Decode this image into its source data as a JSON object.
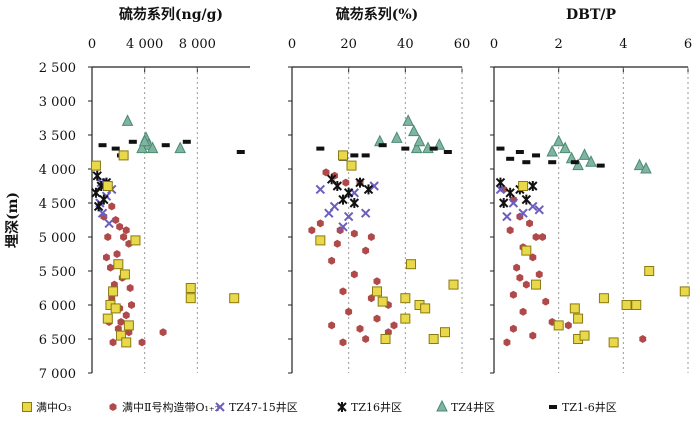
{
  "chart_data": {
    "type": "scatter",
    "ylabel": "埋深(m)",
    "ylim": [
      2500,
      7000
    ],
    "y_ticks": [
      "2 500",
      "3 000",
      "3 500",
      "4 000",
      "4 500",
      "5 000",
      "5 500",
      "6 000",
      "6 500",
      "7 000"
    ],
    "y_tick_values": [
      2500,
      3000,
      3500,
      4000,
      4500,
      5000,
      5500,
      6000,
      6500,
      7000
    ],
    "y_inverted": true,
    "grid": "vertical dashed",
    "legend_position": "bottom",
    "legend": [
      {
        "key": "ms",
        "label": "满中O₃",
        "color": "#e8d84a",
        "marker": "square"
      },
      {
        "key": "sz",
        "label": "满中Ⅱ号构造带O₁₊₂",
        "color": "#b04a4a",
        "marker": "hexagon"
      },
      {
        "key": "tz47",
        "label": "TZ47-15井区",
        "color": "#6a5fc0",
        "marker": "x"
      },
      {
        "key": "tz16",
        "label": "TZ16井区",
        "color": "#111111",
        "marker": "star"
      },
      {
        "key": "tz4",
        "label": "TZ4井区",
        "color": "#7fb5a0",
        "marker": "triangle"
      },
      {
        "key": "tz16b",
        "label": "TZ1-6井区",
        "color": "#111111",
        "marker": "dot"
      }
    ],
    "panels": [
      {
        "title": "硫芴系列(ng/g)",
        "xlim": [
          0,
          12000
        ],
        "x_ticks": [
          "0",
          "4 000",
          "8 000"
        ],
        "x_tick_values": [
          0,
          4000,
          8000
        ],
        "series": {
          "ms": [
            [
              300,
              3950
            ],
            [
              2400,
              3800
            ],
            [
              1200,
              4250
            ],
            [
              3300,
              5050
            ],
            [
              2000,
              5400
            ],
            [
              2500,
              5550
            ],
            [
              1600,
              5800
            ],
            [
              1400,
              6000
            ],
            [
              1200,
              6200
            ],
            [
              2800,
              6300
            ],
            [
              2200,
              6450
            ],
            [
              2600,
              6550
            ],
            [
              7500,
              5750
            ],
            [
              7500,
              5900
            ],
            [
              10800,
              5900
            ],
            [
              1800,
              6050
            ]
          ],
          "sz": [
            [
              1500,
              4550
            ],
            [
              1800,
              4750
            ],
            [
              2100,
              4850
            ],
            [
              2600,
              4900
            ],
            [
              1200,
              5000
            ],
            [
              2800,
              5100
            ],
            [
              1900,
              5250
            ],
            [
              1400,
              5450
            ],
            [
              2300,
              5600
            ],
            [
              1700,
              5700
            ],
            [
              2900,
              5750
            ],
            [
              1500,
              5900
            ],
            [
              2100,
              6050
            ],
            [
              2600,
              6150
            ],
            [
              1300,
              6250
            ],
            [
              2000,
              6350
            ],
            [
              2800,
              6400
            ],
            [
              1600,
              6550
            ],
            [
              3800,
              6550
            ],
            [
              5400,
              6400
            ],
            [
              2400,
              5000
            ],
            [
              1100,
              5300
            ],
            [
              3000,
              6000
            ],
            [
              900,
              4700
            ],
            [
              2200,
              6250
            ]
          ],
          "tz47": [
            [
              700,
              4200
            ],
            [
              1100,
              4400
            ],
            [
              800,
              4650
            ],
            [
              1300,
              4800
            ],
            [
              600,
              4500
            ],
            [
              1500,
              4300
            ]
          ],
          "tz16": [
            [
              400,
              4100
            ],
            [
              700,
              4250
            ],
            [
              300,
              4350
            ],
            [
              900,
              4450
            ],
            [
              500,
              4550
            ],
            [
              1100,
              4200
            ]
          ],
          "tz4": [
            [
              2700,
              3300
            ],
            [
              4100,
              3550
            ],
            [
              4300,
              3650
            ],
            [
              3800,
              3700
            ],
            [
              4600,
              3700
            ],
            [
              6700,
              3700
            ],
            [
              4000,
              3600
            ]
          ],
          "tz16b": [
            [
              800,
              3650
            ],
            [
              1800,
              3700
            ],
            [
              3100,
              3600
            ],
            [
              5600,
              3650
            ],
            [
              7200,
              3600
            ],
            [
              11300,
              3750
            ],
            [
              2200,
              3800
            ]
          ]
        }
      },
      {
        "title": "硫芴系列(%)",
        "xlim": [
          0,
          60
        ],
        "x_ticks": [
          "0",
          "20",
          "40",
          "60"
        ],
        "x_tick_values": [
          0,
          20,
          40,
          60
        ],
        "series": {
          "ms": [
            [
              21,
              3950
            ],
            [
              10,
              5050
            ],
            [
              42,
              5400
            ],
            [
              57,
              5700
            ],
            [
              30,
              5800
            ],
            [
              32,
              5950
            ],
            [
              40,
              5900
            ],
            [
              45,
              6000
            ],
            [
              47,
              6050
            ],
            [
              40,
              6200
            ],
            [
              54,
              6400
            ],
            [
              50,
              6500
            ],
            [
              33,
              6500
            ],
            [
              18,
              3800
            ]
          ],
          "sz": [
            [
              12,
              4050
            ],
            [
              15,
              4100
            ],
            [
              19,
              4200
            ],
            [
              24,
              4200
            ],
            [
              10,
              4800
            ],
            [
              17,
              4900
            ],
            [
              22,
              4950
            ],
            [
              28,
              5000
            ],
            [
              16,
              5100
            ],
            [
              26,
              5200
            ],
            [
              14,
              5350
            ],
            [
              22,
              5550
            ],
            [
              30,
              5650
            ],
            [
              18,
              5800
            ],
            [
              28,
              5900
            ],
            [
              34,
              6000
            ],
            [
              20,
              6100
            ],
            [
              30,
              6200
            ],
            [
              14,
              6300
            ],
            [
              24,
              6350
            ],
            [
              34,
              6400
            ],
            [
              18,
              6550
            ],
            [
              26,
              6500
            ],
            [
              7,
              4900
            ],
            [
              36,
              6300
            ]
          ],
          "tz47": [
            [
              10,
              4300
            ],
            [
              15,
              4550
            ],
            [
              20,
              4700
            ],
            [
              26,
              4650
            ],
            [
              18,
              4850
            ],
            [
              22,
              4350
            ],
            [
              29,
              4250
            ],
            [
              13,
              4650
            ]
          ],
          "tz16": [
            [
              16,
              4250
            ],
            [
              20,
              4350
            ],
            [
              24,
              4200
            ],
            [
              18,
              4450
            ],
            [
              14,
              4150
            ],
            [
              22,
              4500
            ],
            [
              27,
              4300
            ]
          ],
          "tz4": [
            [
              41,
              3300
            ],
            [
              43,
              3450
            ],
            [
              31,
              3600
            ],
            [
              37,
              3550
            ],
            [
              44,
              3700
            ],
            [
              48,
              3700
            ],
            [
              52,
              3650
            ],
            [
              45,
              3600
            ]
          ],
          "tz16b": [
            [
              10,
              3700
            ],
            [
              18,
              3850
            ],
            [
              22,
              3800
            ],
            [
              32,
              3650
            ],
            [
              40,
              3700
            ],
            [
              50,
              3700
            ],
            [
              55,
              3750
            ],
            [
              26,
              3800
            ]
          ]
        }
      },
      {
        "title": "DBT/P",
        "xlim": [
          0,
          6
        ],
        "x_ticks": [
          "0",
          "2",
          "4",
          "6"
        ],
        "x_tick_values": [
          0,
          2,
          4,
          6
        ],
        "series": {
          "ms": [
            [
              0.9,
              4250
            ],
            [
              1.0,
              5200
            ],
            [
              1.3,
              5700
            ],
            [
              2.0,
              6300
            ],
            [
              2.5,
              6050
            ],
            [
              2.6,
              6200
            ],
            [
              2.6,
              6500
            ],
            [
              2.8,
              6450
            ],
            [
              3.4,
              5900
            ],
            [
              4.1,
              6000
            ],
            [
              4.4,
              6000
            ],
            [
              4.8,
              5500
            ],
            [
              5.9,
              5800
            ],
            [
              3.7,
              6550
            ]
          ],
          "sz": [
            [
              0.3,
              4300
            ],
            [
              0.6,
              4450
            ],
            [
              0.8,
              4700
            ],
            [
              1.1,
              4800
            ],
            [
              0.5,
              4900
            ],
            [
              1.3,
              5000
            ],
            [
              0.9,
              5150
            ],
            [
              1.2,
              5300
            ],
            [
              0.7,
              5450
            ],
            [
              1.4,
              5550
            ],
            [
              1.0,
              5700
            ],
            [
              0.6,
              5850
            ],
            [
              1.6,
              5950
            ],
            [
              0.9,
              6100
            ],
            [
              1.8,
              6250
            ],
            [
              0.6,
              6350
            ],
            [
              1.2,
              6450
            ],
            [
              0.4,
              6550
            ],
            [
              2.3,
              6300
            ],
            [
              4.6,
              6500
            ],
            [
              1.5,
              5000
            ],
            [
              0.8,
              5600
            ]
          ],
          "tz47": [
            [
              0.2,
              4300
            ],
            [
              0.6,
              4500
            ],
            [
              0.9,
              4650
            ],
            [
              1.2,
              4550
            ],
            [
              0.4,
              4700
            ],
            [
              1.4,
              4600
            ]
          ],
          "tz16": [
            [
              0.2,
              4200
            ],
            [
              0.5,
              4350
            ],
            [
              0.8,
              4300
            ],
            [
              1.0,
              4450
            ],
            [
              0.3,
              4500
            ],
            [
              1.2,
              4250
            ]
          ],
          "tz4": [
            [
              2.0,
              3600
            ],
            [
              2.2,
              3700
            ],
            [
              2.4,
              3850
            ],
            [
              2.6,
              3950
            ],
            [
              2.8,
              3800
            ],
            [
              3.0,
              3900
            ],
            [
              4.5,
              3950
            ],
            [
              4.7,
              4000
            ],
            [
              1.8,
              3750
            ]
          ],
          "tz16b": [
            [
              0.2,
              3700
            ],
            [
              0.5,
              3850
            ],
            [
              1.0,
              3900
            ],
            [
              1.3,
              3800
            ],
            [
              1.8,
              3900
            ],
            [
              2.5,
              3900
            ],
            [
              3.3,
              3950
            ],
            [
              0.8,
              3750
            ]
          ]
        }
      }
    ]
  }
}
